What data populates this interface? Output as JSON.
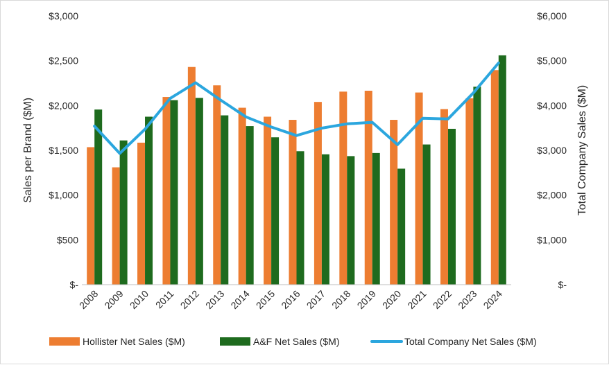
{
  "chart_data": {
    "type": "bar",
    "title": "",
    "categories": [
      "2008",
      "2009",
      "2010",
      "2011",
      "2012",
      "2013",
      "2014",
      "2015",
      "2016",
      "2017",
      "2018",
      "2019",
      "2020",
      "2021",
      "2022",
      "2023",
      "2024"
    ],
    "series": [
      {
        "name": "Hollister Net Sales ($M)",
        "type": "bar",
        "axis": "left",
        "color": "#ED7D31",
        "values": [
          1535,
          1310,
          1585,
          2095,
          2430,
          2225,
          1975,
          1875,
          1840,
          2040,
          2155,
          2165,
          1840,
          2145,
          1960,
          2080,
          2395
        ]
      },
      {
        "name": "A&F Net Sales ($M)",
        "type": "bar",
        "axis": "left",
        "color": "#1E6B1E",
        "values": [
          1955,
          1610,
          1875,
          2060,
          2085,
          1890,
          1770,
          1645,
          1490,
          1455,
          1435,
          1470,
          1295,
          1565,
          1740,
          2210,
          2560
        ]
      },
      {
        "name": "Total Company Net Sales ($M)",
        "type": "line",
        "axis": "right",
        "color": "#2BA6DE",
        "values": [
          3540,
          2930,
          3470,
          4160,
          4510,
          4120,
          3745,
          3520,
          3330,
          3495,
          3590,
          3625,
          3125,
          3715,
          3700,
          4280,
          4950
        ]
      }
    ],
    "y_left": {
      "label": "Sales per Brand ($M)",
      "ylim": [
        0,
        3000
      ],
      "ticks": [
        0,
        500,
        1000,
        1500,
        2000,
        2500,
        3000
      ],
      "tick_labels": [
        "$-",
        "$500",
        "$1,000",
        "$1,500",
        "$2,000",
        "$2,500",
        "$3,000"
      ]
    },
    "y_right": {
      "label": "Total Company Sales ($M)",
      "ylim": [
        0,
        6000
      ],
      "ticks": [
        0,
        1000,
        2000,
        3000,
        4000,
        5000,
        6000
      ],
      "tick_labels": [
        "$-",
        "$1,000",
        "$2,000",
        "$3,000",
        "$4,000",
        "$5,000",
        "$6,000"
      ]
    },
    "legend": {
      "position": "bottom",
      "entries": [
        "Hollister Net Sales ($M)",
        "A&F Net Sales ($M)",
        "Total Company Net Sales ($M)"
      ]
    },
    "grid": false
  }
}
